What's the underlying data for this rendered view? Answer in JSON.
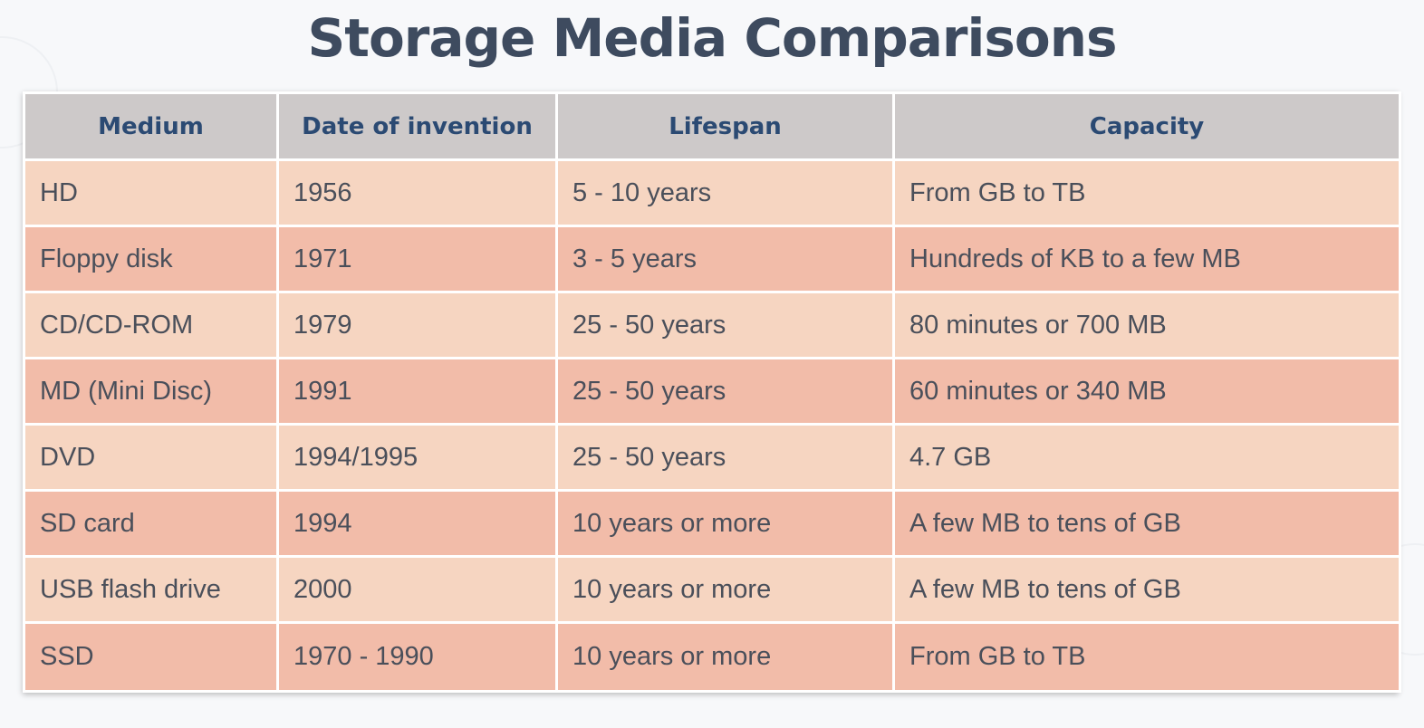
{
  "title": "Storage Media Comparisons",
  "table": {
    "headers": [
      "Medium",
      "Date of invention",
      "Lifespan",
      "Capacity"
    ],
    "rows": [
      [
        "HD",
        "1956",
        "5 - 10 years",
        "From GB to TB"
      ],
      [
        "Floppy disk",
        "1971",
        "3 - 5 years",
        "Hundreds of KB to a few MB"
      ],
      [
        "CD/CD-ROM",
        "1979",
        "25 - 50 years",
        "80 minutes or 700 MB"
      ],
      [
        "MD (Mini Disc)",
        "1991",
        "25 - 50 years",
        "60 minutes or 340 MB"
      ],
      [
        "DVD",
        "1994/1995",
        "25 - 50 years",
        "4.7 GB"
      ],
      [
        "SD card",
        "1994",
        "10 years or more",
        "A few MB to tens of GB"
      ],
      [
        "USB flash drive",
        "2000",
        "10 years or more",
        "A few MB to tens of GB"
      ],
      [
        "SSD",
        "1970 - 1990",
        "10 years or more",
        "From GB to TB"
      ]
    ]
  },
  "colors": {
    "title": "#3e4b5f",
    "header_bg": "#cdc9c9",
    "header_text": "#2b4a73",
    "row_light": "#f6d5c1",
    "row_dark": "#f2bca9",
    "cell_text": "#4a4f5a"
  }
}
